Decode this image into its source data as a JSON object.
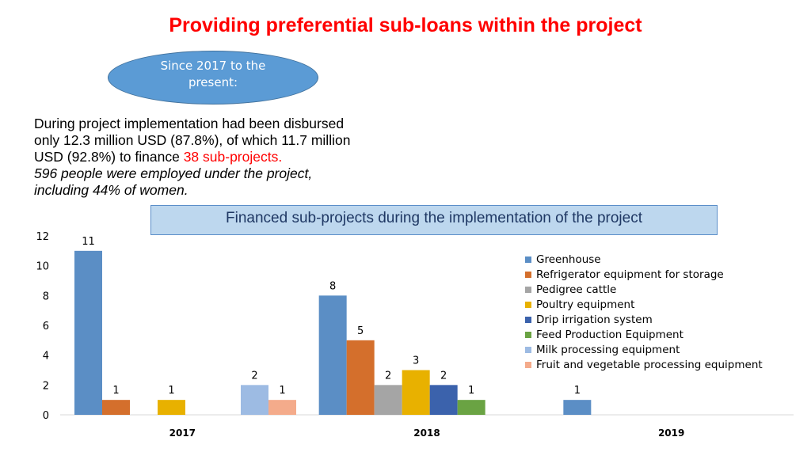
{
  "title": "Providing preferential sub-loans within the project",
  "oval": {
    "line1": "Since 2017 to the",
    "line2": "present:"
  },
  "paragraph": {
    "line1": "During project implementation had been disbursed",
    "line2": "only 12.3 million USD (87.8%), of which 11.7 million",
    "line3_prefix": "USD (92.8%) to finance ",
    "line3_highlight": "38 sub-projects.",
    "line4": "596 people were employed under the project,",
    "line5": "including 44% of women."
  },
  "colors": {
    "title": "#ff0000",
    "highlight": "#ff0000",
    "oval_fill": "#5b9bd5",
    "subtitle_fill": "#bdd7ee"
  },
  "chart_data": {
    "type": "bar",
    "title": "Financed sub-projects during the implementation of the project",
    "categories": [
      "2017",
      "2018",
      "2019"
    ],
    "ylim": [
      0,
      12
    ],
    "yticks": [
      0,
      2,
      4,
      6,
      8,
      10,
      12
    ],
    "grid": false,
    "legend_position": "right",
    "series": [
      {
        "name": "Greenhouse",
        "color": "#5b8ec5",
        "values": [
          11,
          8,
          1
        ]
      },
      {
        "name": "Refrigerator equipment for storage",
        "color": "#d46f2c",
        "values": [
          1,
          5,
          null
        ]
      },
      {
        "name": "Pedigree cattle",
        "color": "#a5a5a5",
        "values": [
          null,
          2,
          null
        ]
      },
      {
        "name": "Poultry equipment",
        "color": "#e8b100",
        "values": [
          1,
          3,
          null
        ]
      },
      {
        "name": "Drip irrigation system",
        "color": "#3b62ac",
        "values": [
          null,
          2,
          null
        ]
      },
      {
        "name": "Feed Production Equipment",
        "color": "#6aa343",
        "values": [
          null,
          1,
          null
        ]
      },
      {
        "name": "Milk processing equipment",
        "color": "#9dbbe3",
        "values": [
          2,
          null,
          null
        ]
      },
      {
        "name": "Fruit and vegetable processing  equipment",
        "color": "#f4ab8b",
        "values": [
          1,
          null,
          null
        ]
      }
    ]
  }
}
